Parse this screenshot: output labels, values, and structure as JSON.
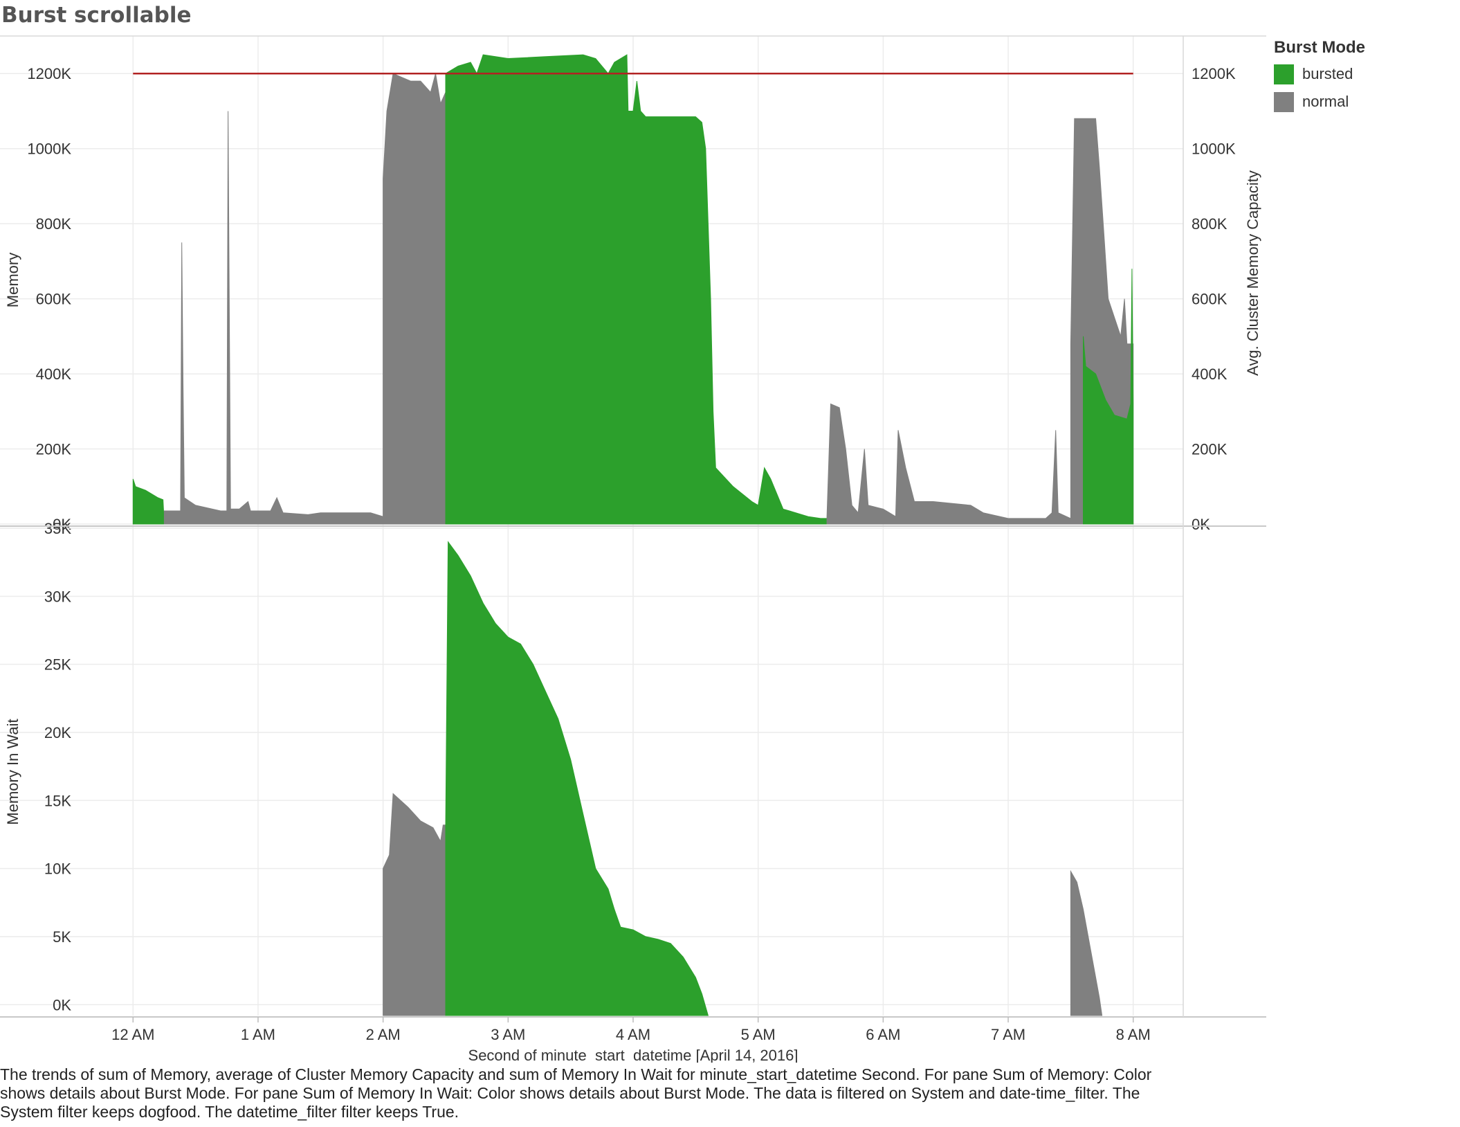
{
  "title": "Burst scrollable",
  "legend": {
    "title": "Burst Mode",
    "items": [
      {
        "label": "bursted",
        "color": "#2ca02c"
      },
      {
        "label": "normal",
        "color": "#808080"
      }
    ]
  },
  "caption": "The trends of sum of Memory, average of Cluster Memory Capacity and sum of Memory In Wait for minute_start_datetime Second.  For pane Sum of Memory: Color shows details about Burst Mode.  For pane Sum of Memory In Wait:  Color shows details about Burst Mode. The data is filtered on System and date-time_filter. The System filter keeps dogfood. The datetime_filter filter keeps True.",
  "chart_data": {
    "type": "area",
    "colors": {
      "bursted": "#2ca02c",
      "normal": "#808080",
      "capacity_line": "#b22222"
    },
    "x_axis": {
      "label": "Second of minute_start_datetime [April 14, 2016]",
      "ticks": [
        "12 AM",
        "1 AM",
        "2 AM",
        "3 AM",
        "4 AM",
        "5 AM",
        "6 AM",
        "7 AM",
        "8 AM"
      ],
      "range_hours": [
        -0.4,
        8.4
      ]
    },
    "panes": [
      {
        "name": "memory",
        "ylabel": "Memory",
        "ylabel_right": "Avg. Cluster Memory Capacity",
        "ylim": [
          0,
          1300000
        ],
        "yticks": [
          "0K",
          "200K",
          "400K",
          "600K",
          "800K",
          "1000K",
          "1200K"
        ],
        "ytick_values": [
          0,
          200000,
          400000,
          600000,
          800000,
          1000000,
          1200000
        ],
        "capacity_line": {
          "value": 1200000,
          "x_start": 0,
          "x_end": 8
        },
        "segments": [
          {
            "mode": "bursted",
            "points": [
              [
                0,
                0
              ],
              [
                0,
                120000
              ],
              [
                0.02,
                100000
              ],
              [
                0.1,
                90000
              ],
              [
                0.2,
                70000
              ],
              [
                0.24,
                65000
              ],
              [
                0.25,
                0
              ]
            ]
          },
          {
            "mode": "normal",
            "points": [
              [
                0.25,
                0
              ],
              [
                0.25,
                35000
              ],
              [
                0.38,
                35000
              ],
              [
                0.39,
                750000
              ],
              [
                0.4,
                380000
              ],
              [
                0.41,
                70000
              ],
              [
                0.5,
                50000
              ],
              [
                0.7,
                35000
              ],
              [
                0.75,
                35000
              ],
              [
                0.76,
                1100000
              ],
              [
                0.78,
                40000
              ],
              [
                0.85,
                40000
              ],
              [
                0.92,
                60000
              ],
              [
                0.94,
                35000
              ],
              [
                1.1,
                35000
              ],
              [
                1.15,
                70000
              ],
              [
                1.2,
                30000
              ],
              [
                1.4,
                25000
              ],
              [
                1.5,
                30000
              ],
              [
                1.9,
                30000
              ],
              [
                2.0,
                20000
              ],
              [
                2.0,
                920000
              ],
              [
                2.03,
                1100000
              ],
              [
                2.08,
                1200000
              ],
              [
                2.15,
                1190000
              ],
              [
                2.22,
                1180000
              ],
              [
                2.3,
                1180000
              ],
              [
                2.38,
                1150000
              ],
              [
                2.42,
                1200000
              ],
              [
                2.46,
                1120000
              ],
              [
                2.5,
                1150000
              ],
              [
                2.5,
                0
              ]
            ]
          },
          {
            "mode": "bursted",
            "points": [
              [
                2.5,
                0
              ],
              [
                2.5,
                1200000
              ],
              [
                2.6,
                1220000
              ],
              [
                2.7,
                1230000
              ],
              [
                2.75,
                1200000
              ],
              [
                2.8,
                1250000
              ],
              [
                3.0,
                1240000
              ],
              [
                3.3,
                1245000
              ],
              [
                3.6,
                1250000
              ],
              [
                3.7,
                1240000
              ],
              [
                3.8,
                1200000
              ],
              [
                3.85,
                1230000
              ],
              [
                3.95,
                1250000
              ],
              [
                3.96,
                1100000
              ],
              [
                4.0,
                1100000
              ],
              [
                4.03,
                1180000
              ],
              [
                4.06,
                1100000
              ],
              [
                4.1,
                1085000
              ],
              [
                4.5,
                1085000
              ],
              [
                4.55,
                1070000
              ],
              [
                4.58,
                1000000
              ],
              [
                4.6,
                800000
              ],
              [
                4.62,
                600000
              ],
              [
                4.64,
                300000
              ],
              [
                4.66,
                150000
              ],
              [
                4.8,
                100000
              ],
              [
                4.95,
                60000
              ],
              [
                5.0,
                50000
              ],
              [
                5.05,
                150000
              ],
              [
                5.1,
                120000
              ],
              [
                5.15,
                80000
              ],
              [
                5.2,
                40000
              ],
              [
                5.3,
                30000
              ],
              [
                5.4,
                20000
              ],
              [
                5.5,
                15000
              ],
              [
                5.55,
                15000
              ],
              [
                5.55,
                0
              ]
            ]
          },
          {
            "mode": "normal",
            "points": [
              [
                5.55,
                0
              ],
              [
                5.55,
                20000
              ],
              [
                5.58,
                320000
              ],
              [
                5.65,
                310000
              ],
              [
                5.7,
                200000
              ],
              [
                5.75,
                50000
              ],
              [
                5.8,
                30000
              ],
              [
                5.85,
                200000
              ],
              [
                5.88,
                50000
              ],
              [
                6.0,
                40000
              ],
              [
                6.05,
                30000
              ],
              [
                6.1,
                20000
              ],
              [
                6.12,
                250000
              ],
              [
                6.18,
                150000
              ],
              [
                6.25,
                60000
              ],
              [
                6.4,
                60000
              ],
              [
                6.7,
                50000
              ],
              [
                6.8,
                30000
              ],
              [
                7.0,
                15000
              ],
              [
                7.3,
                15000
              ],
              [
                7.35,
                30000
              ],
              [
                7.38,
                250000
              ],
              [
                7.4,
                30000
              ],
              [
                7.5,
                15000
              ],
              [
                7.5,
                480000
              ],
              [
                7.53,
                1080000
              ],
              [
                7.7,
                1080000
              ],
              [
                7.73,
                950000
              ],
              [
                7.76,
                800000
              ],
              [
                7.8,
                600000
              ],
              [
                7.85,
                550000
              ],
              [
                7.9,
                500000
              ],
              [
                7.93,
                600000
              ],
              [
                7.95,
                480000
              ],
              [
                8.0,
                480000
              ],
              [
                8.0,
                0
              ]
            ]
          },
          {
            "mode": "bursted",
            "points": [
              [
                7.6,
                0
              ],
              [
                7.6,
                500000
              ],
              [
                7.62,
                420000
              ],
              [
                7.7,
                400000
              ],
              [
                7.78,
                330000
              ],
              [
                7.85,
                290000
              ],
              [
                7.95,
                280000
              ],
              [
                7.98,
                320000
              ],
              [
                7.99,
                680000
              ],
              [
                8.0,
                320000
              ],
              [
                8.0,
                0
              ]
            ]
          }
        ]
      },
      {
        "name": "memory_in_wait",
        "ylabel": "Memory In Wait",
        "ylim": [
          -800,
          35000
        ],
        "yticks": [
          "0K",
          "5K",
          "10K",
          "15K",
          "20K",
          "25K",
          "30K",
          "35K"
        ],
        "ytick_values": [
          0,
          5000,
          10000,
          15000,
          20000,
          25000,
          30000,
          35000
        ],
        "segments": [
          {
            "mode": "normal",
            "points": [
              [
                2.0,
                -800
              ],
              [
                2.0,
                10000
              ],
              [
                2.05,
                11000
              ],
              [
                2.08,
                15500
              ],
              [
                2.2,
                14500
              ],
              [
                2.3,
                13500
              ],
              [
                2.4,
                13000
              ],
              [
                2.46,
                12000
              ],
              [
                2.48,
                13200
              ],
              [
                2.5,
                13200
              ],
              [
                2.5,
                -800
              ]
            ]
          },
          {
            "mode": "bursted",
            "points": [
              [
                2.5,
                -800
              ],
              [
                2.5,
                13000
              ],
              [
                2.52,
                34000
              ],
              [
                2.6,
                33000
              ],
              [
                2.7,
                31500
              ],
              [
                2.8,
                29500
              ],
              [
                2.9,
                28000
              ],
              [
                3.0,
                27000
              ],
              [
                3.1,
                26500
              ],
              [
                3.2,
                25000
              ],
              [
                3.3,
                23000
              ],
              [
                3.4,
                21000
              ],
              [
                3.5,
                18000
              ],
              [
                3.6,
                14000
              ],
              [
                3.7,
                10000
              ],
              [
                3.8,
                8500
              ],
              [
                3.85,
                7000
              ],
              [
                3.9,
                5700
              ],
              [
                4.0,
                5500
              ],
              [
                4.1,
                5000
              ],
              [
                4.2,
                4800
              ],
              [
                4.3,
                4500
              ],
              [
                4.4,
                3500
              ],
              [
                4.5,
                2000
              ],
              [
                4.55,
                800
              ],
              [
                4.6,
                -800
              ]
            ]
          },
          {
            "mode": "normal",
            "points": [
              [
                7.5,
                -800
              ],
              [
                7.5,
                9800
              ],
              [
                7.55,
                9000
              ],
              [
                7.6,
                7000
              ],
              [
                7.65,
                4500
              ],
              [
                7.7,
                2000
              ],
              [
                7.73,
                500
              ],
              [
                7.75,
                -800
              ]
            ]
          }
        ]
      }
    ]
  }
}
